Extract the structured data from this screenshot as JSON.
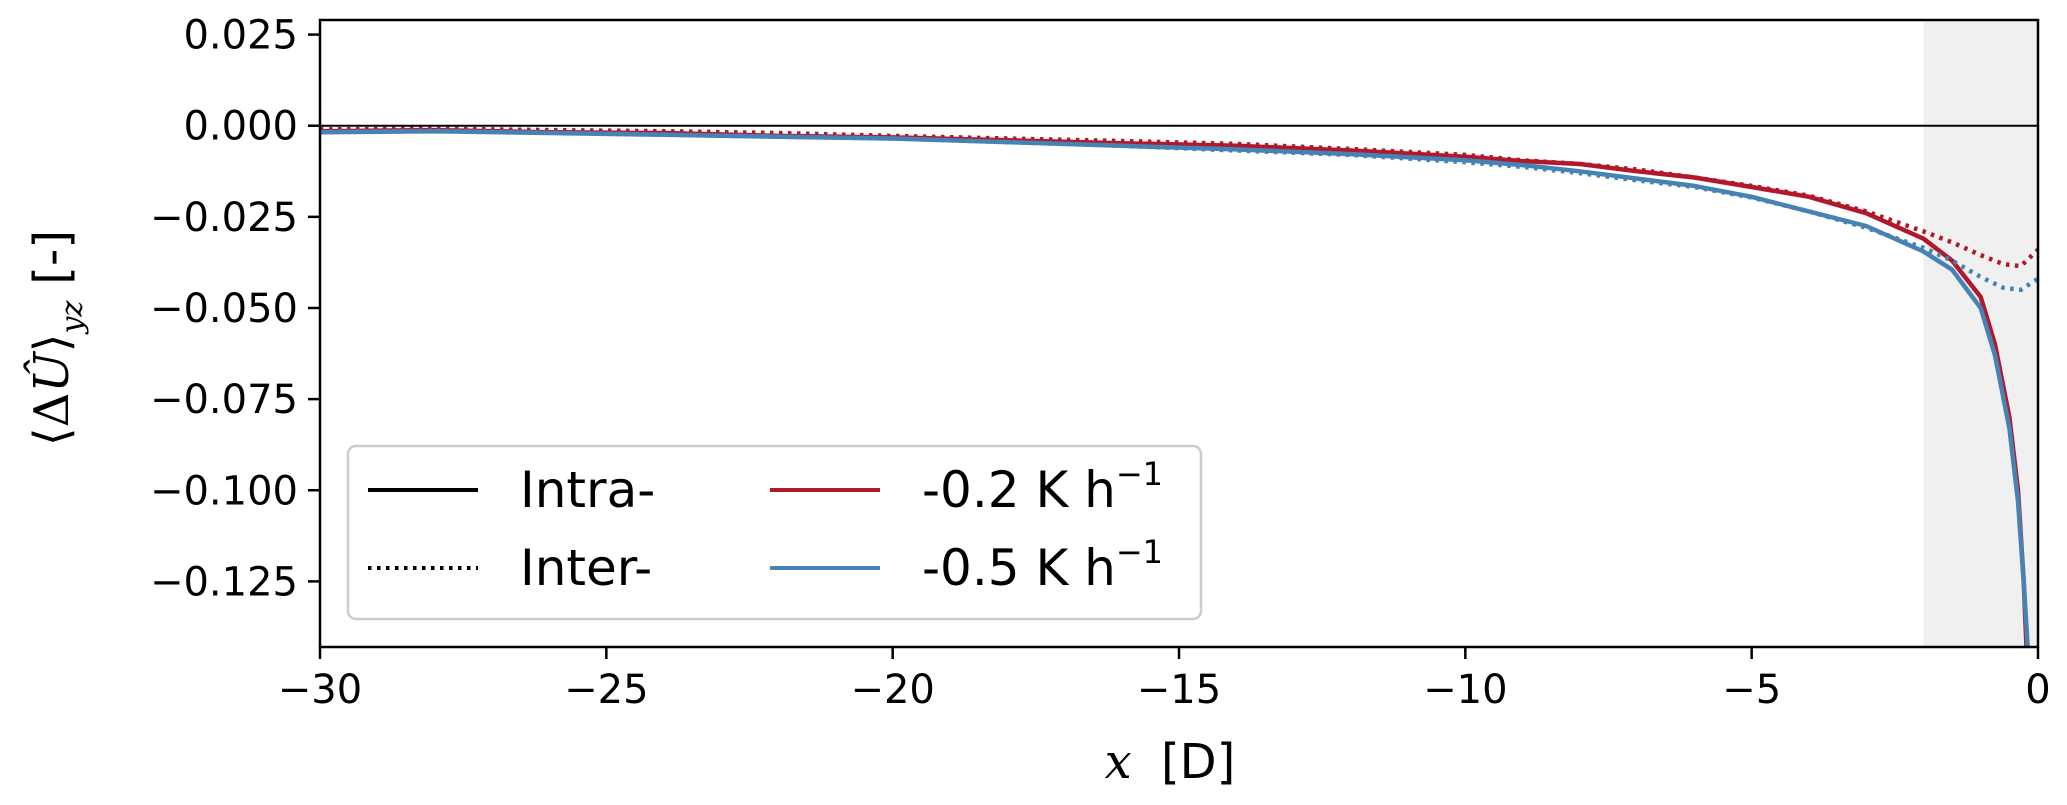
{
  "chart_data": {
    "type": "line",
    "x_label": {
      "math": "x",
      "text": "[D]"
    },
    "y_label": {
      "text": "[-]"
    },
    "xlim": [
      -30,
      0
    ],
    "ylim": [
      -0.143,
      0.029
    ],
    "x_ticks": [
      -30,
      -25,
      -20,
      -15,
      -10,
      -5,
      0
    ],
    "y_ticks": [
      0.025,
      0.0,
      -0.025,
      -0.05,
      -0.075,
      -0.1,
      -0.125
    ],
    "x_tick_labels": [
      "−30",
      "−25",
      "−20",
      "−15",
      "−10",
      "−5",
      "0"
    ],
    "y_tick_labels": [
      "0.025",
      "0.000",
      "−0.025",
      "−0.050",
      "−0.075",
      "−0.100",
      "−0.125"
    ],
    "reference_line_y": 0,
    "shaded_region_x": [
      -2,
      0
    ],
    "grid": false,
    "legend_placement": "lower-left",
    "legend": {
      "styles": [
        {
          "label": "Intra-",
          "dash": "solid"
        },
        {
          "label": "Inter-",
          "dash": "dotted"
        }
      ],
      "cases": [
        {
          "label": "-0.2 K h",
          "superscript": "−1",
          "color": "#b2182b"
        },
        {
          "label": "-0.5 K h",
          "superscript": "−1",
          "color": "#4682b4"
        }
      ]
    },
    "series": [
      {
        "case": "-0.2 K h⁻¹",
        "style": "Intra-",
        "color": "#b2182b",
        "dash": "solid",
        "x": [
          -30,
          -28,
          -26,
          -24,
          -22,
          -20,
          -18,
          -16,
          -14,
          -12,
          -10,
          -9,
          -8,
          -7,
          -6,
          -5,
          -4,
          -3,
          -2,
          -1.5,
          -1,
          -0.75,
          -0.5,
          -0.35,
          -0.25,
          -0.2
        ],
        "y": [
          -0.0015,
          -0.0012,
          -0.0018,
          -0.002,
          -0.0028,
          -0.0032,
          -0.004,
          -0.0048,
          -0.0055,
          -0.0068,
          -0.0085,
          -0.0097,
          -0.0105,
          -0.0125,
          -0.0142,
          -0.0168,
          -0.0195,
          -0.024,
          -0.031,
          -0.037,
          -0.047,
          -0.06,
          -0.08,
          -0.1,
          -0.125,
          -0.143
        ]
      },
      {
        "case": "-0.2 K h⁻¹",
        "style": "Inter-",
        "color": "#b2182b",
        "dash": "dotted",
        "x": [
          -30,
          -28,
          -26,
          -24,
          -22,
          -20,
          -18,
          -16,
          -14,
          -12,
          -10,
          -9,
          -8,
          -7,
          -6,
          -5,
          -4,
          -3,
          -2,
          -1.5,
          -1,
          -0.6,
          -0.3,
          0
        ],
        "y": [
          -0.001,
          -0.0008,
          -0.0012,
          -0.0015,
          -0.002,
          -0.0028,
          -0.0035,
          -0.0042,
          -0.005,
          -0.0064,
          -0.008,
          -0.0095,
          -0.0105,
          -0.012,
          -0.0142,
          -0.0165,
          -0.0192,
          -0.0235,
          -0.029,
          -0.032,
          -0.0355,
          -0.038,
          -0.0385,
          -0.034
        ]
      },
      {
        "case": "-0.5 K h⁻¹",
        "style": "Intra-",
        "color": "#4682b4",
        "dash": "solid",
        "x": [
          -30,
          -28,
          -26,
          -24,
          -22,
          -20,
          -18,
          -16,
          -14,
          -12,
          -10,
          -9,
          -8,
          -7,
          -6,
          -5,
          -4,
          -3,
          -2,
          -1.5,
          -1,
          -0.75,
          -0.5,
          -0.35,
          -0.25,
          -0.18
        ],
        "y": [
          -0.0018,
          -0.0015,
          -0.002,
          -0.0025,
          -0.003,
          -0.0035,
          -0.0045,
          -0.0055,
          -0.0065,
          -0.0078,
          -0.0095,
          -0.0108,
          -0.0125,
          -0.0145,
          -0.0165,
          -0.0195,
          -0.0235,
          -0.0275,
          -0.0345,
          -0.0395,
          -0.05,
          -0.063,
          -0.083,
          -0.103,
          -0.125,
          -0.143
        ]
      },
      {
        "case": "-0.5 K h⁻¹",
        "style": "Inter-",
        "color": "#4682b4",
        "dash": "dotted",
        "x": [
          -30,
          -28,
          -26,
          -24,
          -22,
          -20,
          -18,
          -16,
          -14,
          -12,
          -10,
          -9,
          -8,
          -7,
          -6,
          -5,
          -4,
          -3,
          -2,
          -1.5,
          -1,
          -0.6,
          -0.3,
          0
        ],
        "y": [
          -0.0017,
          -0.0014,
          -0.0019,
          -0.0024,
          -0.003,
          -0.0035,
          -0.0045,
          -0.0055,
          -0.0068,
          -0.008,
          -0.01,
          -0.0113,
          -0.013,
          -0.015,
          -0.0168,
          -0.0197,
          -0.0235,
          -0.028,
          -0.0335,
          -0.037,
          -0.0415,
          -0.0445,
          -0.045,
          -0.042
        ]
      }
    ]
  }
}
